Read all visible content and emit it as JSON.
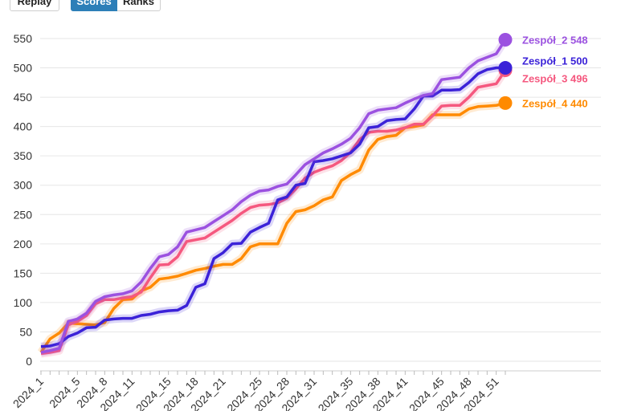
{
  "controls": {
    "replay": "Replay",
    "scores": "Scores",
    "ranks": "Ranks"
  },
  "chart_data": {
    "type": "line",
    "title": "",
    "xlabel": "",
    "ylabel": "",
    "ylim": [
      0,
      550
    ],
    "yticks": [
      0,
      50,
      100,
      150,
      200,
      250,
      300,
      350,
      400,
      450,
      500,
      550
    ],
    "grid": true,
    "x": [
      "2024_1",
      "2024_2",
      "2024_3",
      "2024_4",
      "2024_5",
      "2024_6",
      "2024_7",
      "2024_8",
      "2024_9",
      "2024_10",
      "2024_11",
      "2024_12",
      "2024_13",
      "2024_14",
      "2024_15",
      "2024_16",
      "2024_17",
      "2024_18",
      "2024_19",
      "2024_20",
      "2024_21",
      "2024_22",
      "2024_23",
      "2024_24",
      "2024_25",
      "2024_26",
      "2024_27",
      "2024_28",
      "2024_29",
      "2024_30",
      "2024_31",
      "2024_32",
      "2024_33",
      "2024_34",
      "2024_35",
      "2024_36",
      "2024_37",
      "2024_38",
      "2024_39",
      "2024_40",
      "2024_41",
      "2024_42",
      "2024_43",
      "2024_44",
      "2024_45",
      "2024_46",
      "2024_47",
      "2024_48",
      "2024_49",
      "2024_50",
      "2024_51",
      "2024_52"
    ],
    "xtick_labels": [
      "2024_1",
      "2024_5",
      "2024_8",
      "2024_11",
      "2024_15",
      "2024_18",
      "2024_21",
      "2024_25",
      "2024_28",
      "2024_31",
      "2024_35",
      "2024_38",
      "2024_41",
      "2024_45",
      "2024_48",
      "2024_51"
    ],
    "series": [
      {
        "name": "Zespół_2",
        "final": 548,
        "color": "#9b51e0",
        "values": [
          15,
          18,
          22,
          68,
          72,
          82,
          102,
          110,
          113,
          115,
          120,
          135,
          158,
          178,
          182,
          195,
          220,
          224,
          228,
          238,
          248,
          258,
          272,
          283,
          290,
          292,
          298,
          302,
          318,
          335,
          345,
          355,
          362,
          370,
          380,
          398,
          422,
          428,
          430,
          432,
          440,
          447,
          453,
          456,
          480,
          482,
          484,
          500,
          512,
          518,
          524,
          548
        ]
      },
      {
        "name": "Zespół_1",
        "final": 500,
        "color": "#3b22d8",
        "values": [
          25,
          26,
          30,
          42,
          48,
          57,
          58,
          70,
          72,
          73,
          73,
          78,
          80,
          84,
          86,
          87,
          95,
          126,
          132,
          175,
          185,
          200,
          201,
          220,
          228,
          235,
          275,
          280,
          300,
          303,
          340,
          342,
          345,
          350,
          355,
          370,
          398,
          400,
          410,
          412,
          413,
          430,
          452,
          452,
          462,
          462,
          463,
          475,
          490,
          497,
          500,
          500
        ]
      },
      {
        "name": "Zespół_3",
        "final": 496,
        "color": "#f5587f",
        "values": [
          13,
          15,
          18,
          62,
          68,
          78,
          98,
          105,
          105,
          108,
          110,
          118,
          142,
          164,
          165,
          178,
          204,
          207,
          210,
          220,
          230,
          240,
          252,
          262,
          266,
          267,
          270,
          278,
          294,
          312,
          322,
          328,
          333,
          342,
          356,
          378,
          390,
          392,
          392,
          394,
          398,
          404,
          404,
          418,
          435,
          436,
          436,
          450,
          467,
          470,
          473,
          496
        ]
      },
      {
        "name": "Zespół_4",
        "final": 440,
        "color": "#ff8a00",
        "values": [
          15,
          38,
          48,
          65,
          64,
          63,
          62,
          66,
          90,
          105,
          106,
          120,
          126,
          140,
          142,
          145,
          150,
          155,
          158,
          162,
          165,
          165,
          175,
          195,
          200,
          200,
          200,
          235,
          255,
          258,
          265,
          275,
          280,
          308,
          318,
          326,
          360,
          378,
          383,
          385,
          398,
          400,
          403,
          420,
          420,
          420,
          420,
          430,
          434,
          435,
          436,
          440
        ]
      }
    ]
  }
}
